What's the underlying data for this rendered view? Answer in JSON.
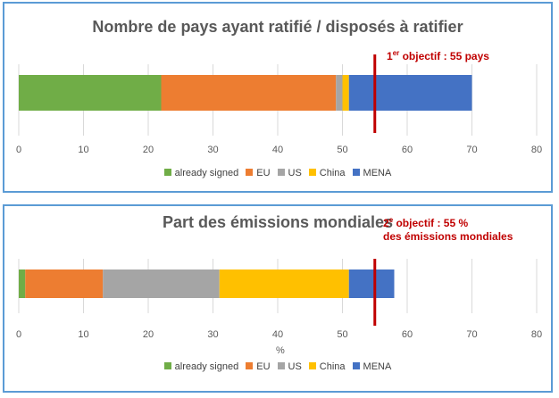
{
  "chart_data": [
    {
      "type": "bar",
      "orientation": "horizontal-stacked",
      "title": "Nombre de pays ayant ratifié / disposés à ratifier",
      "xlim": [
        0,
        80
      ],
      "xticks": [
        "0",
        "10",
        "20",
        "30",
        "40",
        "50",
        "60",
        "70",
        "80"
      ],
      "xlabel": "",
      "series": [
        {
          "name": "already signed",
          "values": [
            22
          ],
          "color": "#70ad47"
        },
        {
          "name": "EU",
          "values": [
            27
          ],
          "color": "#ed7d31"
        },
        {
          "name": "US",
          "values": [
            1
          ],
          "color": "#a5a5a5"
        },
        {
          "name": "China",
          "values": [
            1
          ],
          "color": "#ffc000"
        },
        {
          "name": "MENA",
          "values": [
            19
          ],
          "color": "#4472c4"
        }
      ],
      "objective": {
        "value": 55,
        "ordinal": "1",
        "sup": "er",
        "label": " objectif : 55 pays",
        "color": "#c00000"
      }
    },
    {
      "type": "bar",
      "orientation": "horizontal-stacked",
      "title": "Part des émissions mondiales",
      "xlim": [
        0,
        80
      ],
      "xticks": [
        "0",
        "10",
        "20",
        "30",
        "40",
        "50",
        "60",
        "70",
        "80"
      ],
      "xlabel": "%",
      "series": [
        {
          "name": "already signed",
          "values": [
            1
          ],
          "color": "#70ad47"
        },
        {
          "name": "EU",
          "values": [
            12
          ],
          "color": "#ed7d31"
        },
        {
          "name": "US",
          "values": [
            18
          ],
          "color": "#a5a5a5"
        },
        {
          "name": "China",
          "values": [
            20
          ],
          "color": "#ffc000"
        },
        {
          "name": "MENA",
          "values": [
            7
          ],
          "color": "#4472c4"
        }
      ],
      "objective": {
        "value": 55,
        "ordinal": "2",
        "sup": "e",
        "label": " objectif : 55 %",
        "line2": "des émissions mondiales",
        "color": "#c00000"
      }
    }
  ]
}
